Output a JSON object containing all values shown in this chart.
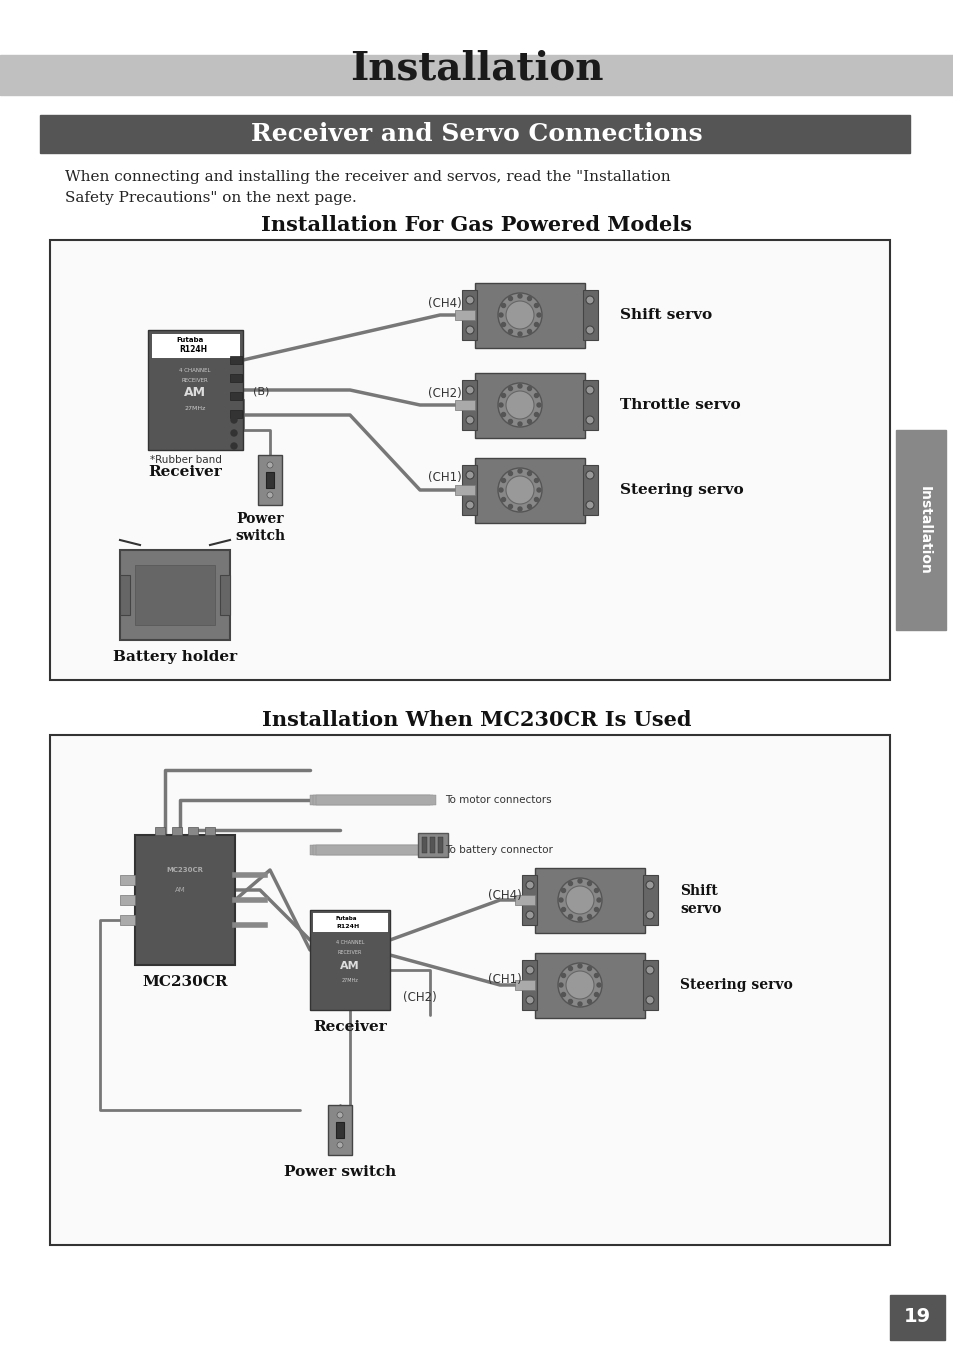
{
  "page_bg": "#ffffff",
  "title_bar_color": "#c0c0c0",
  "title_text": "Installation",
  "title_fontsize": 28,
  "title_color": "#1a1a1a",
  "section_bar_color": "#555555",
  "section_text": "Receiver and Servo Connections",
  "section_fontsize": 18,
  "section_text_color": "#ffffff",
  "body_text": "When connecting and installing the receiver and servos, read the \"Installation\nSafety Precautions\" on the next page.",
  "body_fontsize": 11,
  "subsection1_title": "Installation For Gas Powered Models",
  "subsection1_fontsize": 15,
  "subsection2_title": "Installation When MC230CR Is Used",
  "subsection2_fontsize": 15,
  "side_tab_color": "#888888",
  "side_tab_text": "Installation",
  "page_number": "19",
  "box1_color": "#f0f0f0",
  "box1_border": "#333333",
  "box2_color": "#f0f0f0",
  "box2_border": "#333333",
  "diagram_gray": "#888888",
  "diagram_dark": "#444444",
  "diagram_light": "#bbbbbb",
  "line_color": "#777777"
}
